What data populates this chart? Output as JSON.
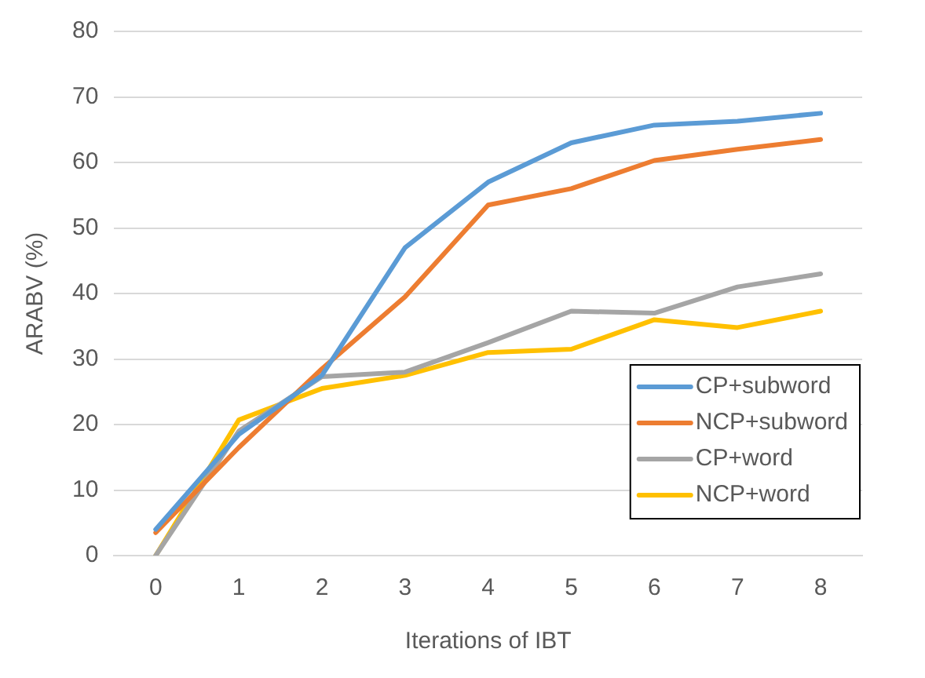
{
  "chart_data": {
    "type": "line",
    "xlabel": "Iterations of IBT",
    "ylabel": "ARABV (%)",
    "categories": [
      "0",
      "1",
      "2",
      "3",
      "4",
      "5",
      "6",
      "7",
      "8"
    ],
    "ylim": [
      0,
      80
    ],
    "yticks": [
      0,
      10,
      20,
      30,
      40,
      50,
      60,
      70,
      80
    ],
    "grid": "y",
    "legend": "bottom right",
    "marker": "none",
    "line_style": "solid",
    "series": [
      {
        "name": "CP+subword",
        "color": "#5b9bd5",
        "values": [
          4,
          18.5,
          27.5,
          47,
          57,
          63,
          65.7,
          66.3,
          67.5
        ]
      },
      {
        "name": "NCP+subword",
        "color": "#ed7d31",
        "values": [
          3.5,
          16.5,
          28.5,
          39.5,
          53.5,
          56,
          60.3,
          62,
          63.5
        ]
      },
      {
        "name": "CP+word",
        "color": "#a5a5a5",
        "values": [
          0,
          19,
          27.3,
          28,
          32.5,
          37.3,
          37,
          41,
          43
        ]
      },
      {
        "name": "NCP+word",
        "color": "#ffc000",
        "values": [
          0,
          20.7,
          25.5,
          27.5,
          31,
          31.5,
          36,
          34.8,
          37.3
        ]
      }
    ]
  }
}
